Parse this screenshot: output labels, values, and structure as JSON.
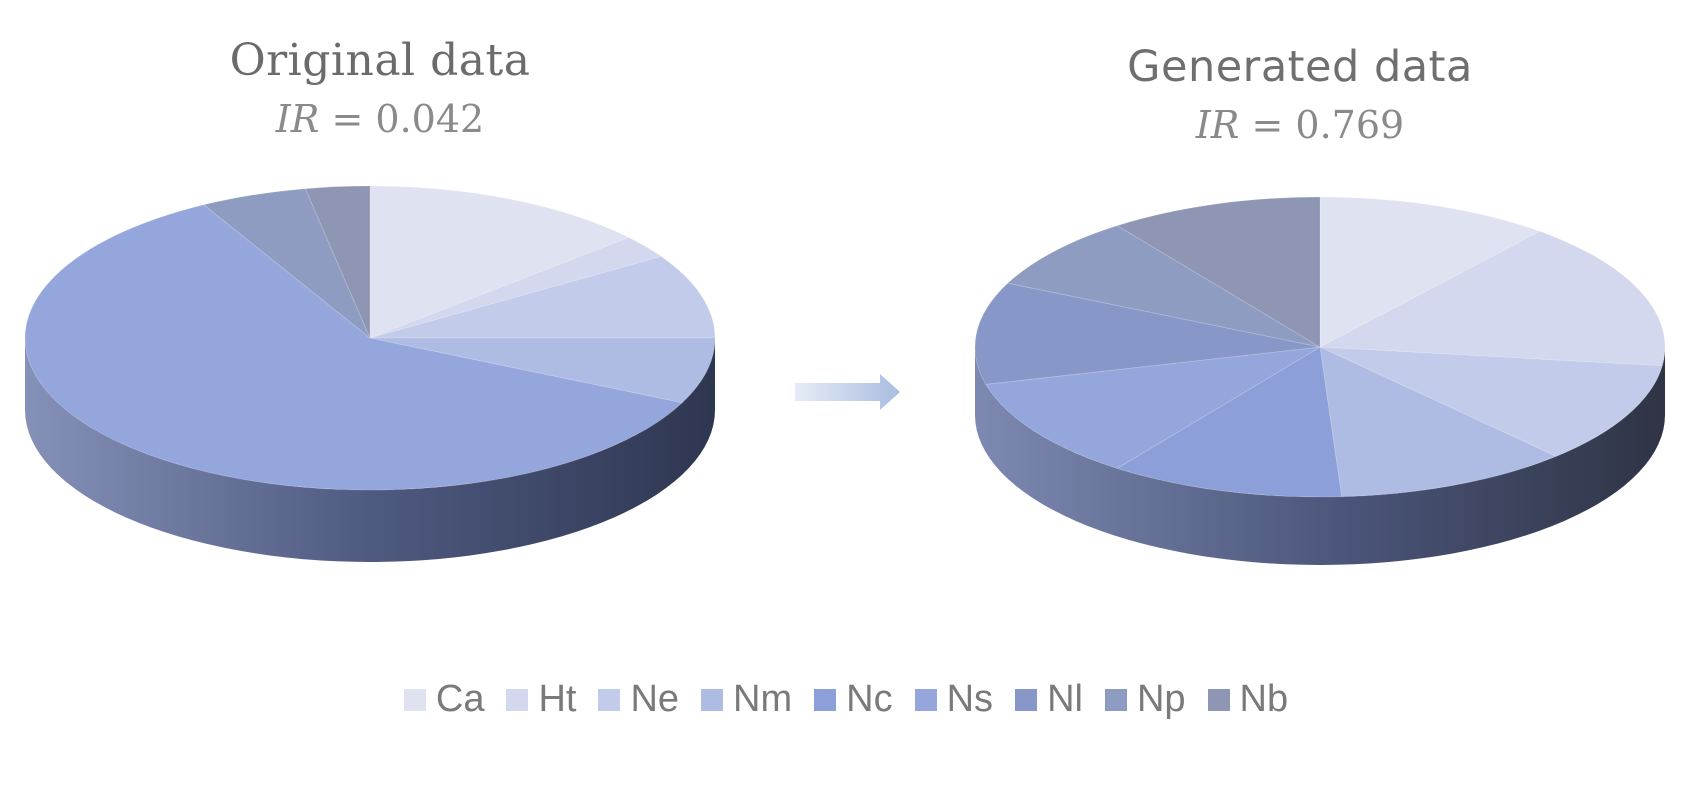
{
  "chart_data": [
    {
      "type": "pie",
      "title": "Original data",
      "subtitle": {
        "var": "IR",
        "op": "=",
        "value": "0.042"
      },
      "categories": [
        "Ca",
        "Ht",
        "Ne",
        "Nm",
        "Nc",
        "Ns",
        "Nl",
        "Np",
        "Nb"
      ],
      "values": [
        13.5,
        2.5,
        9,
        7,
        0,
        60,
        0,
        5,
        3
      ]
    },
    {
      "type": "pie",
      "title": "Generated data",
      "subtitle": {
        "var": "IR",
        "op": "=",
        "value": "0.769"
      },
      "categories": [
        "Ca",
        "Ht",
        "Ne",
        "Nm",
        "Nc",
        "Ns",
        "Nl",
        "Np",
        "Nb"
      ],
      "values": [
        11,
        16,
        11,
        11,
        11,
        11,
        11,
        8,
        10
      ]
    }
  ],
  "legend": [
    "Ca",
    "Ht",
    "Ne",
    "Nm",
    "Nc",
    "Ns",
    "Nl",
    "Np",
    "Nb"
  ],
  "colors": [
    "#dfe3f1",
    "#d3d8ee",
    "#c2cbea",
    "#aebbe3",
    "#8c9fd8",
    "#95a6dc",
    "#8797c8",
    "#8f9cc2",
    "#8e96b4"
  ],
  "arrow_icon": "right-arrow-icon"
}
